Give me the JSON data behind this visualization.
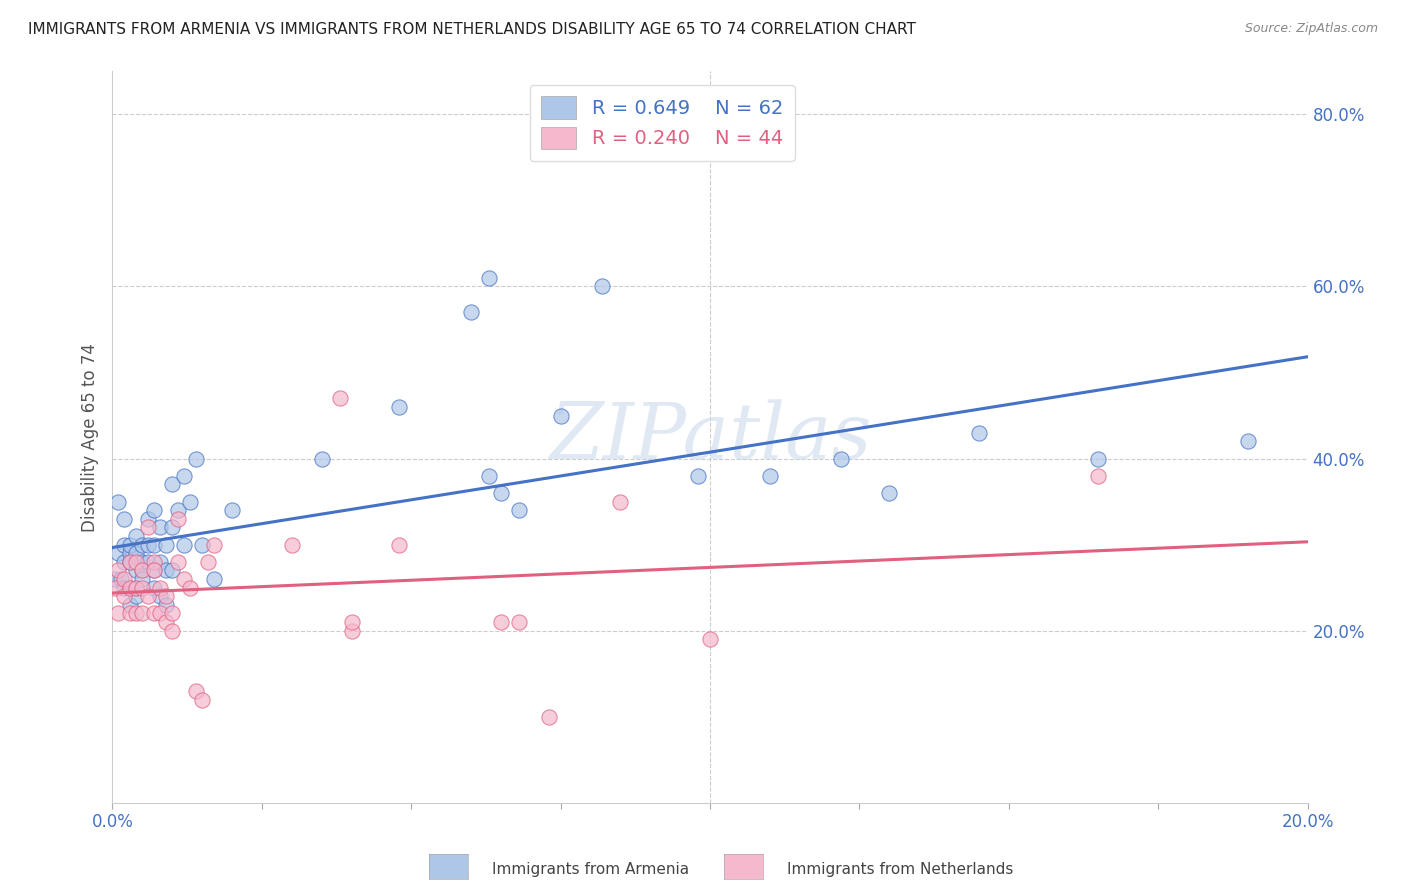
{
  "title": "IMMIGRANTS FROM ARMENIA VS IMMIGRANTS FROM NETHERLANDS DISABILITY AGE 65 TO 74 CORRELATION CHART",
  "source": "Source: ZipAtlas.com",
  "ylabel": "Disability Age 65 to 74",
  "xlim": [
    0.0,
    0.2
  ],
  "ylim": [
    0.0,
    0.85
  ],
  "x_ticks": [
    0.0,
    0.025,
    0.05,
    0.075,
    0.1,
    0.125,
    0.15,
    0.175,
    0.2
  ],
  "y_ticks_right": [
    0.2,
    0.4,
    0.6,
    0.8
  ],
  "y_tick_labels_right": [
    "20.0%",
    "40.0%",
    "60.0%",
    "80.0%"
  ],
  "armenia_R": 0.649,
  "armenia_N": 62,
  "netherlands_R": 0.24,
  "netherlands_N": 44,
  "armenia_color": "#aec6e8",
  "netherlands_color": "#f5b8cd",
  "armenia_line_color": "#4472c4",
  "netherlands_line_color": "#e06080",
  "legend_label_armenia": "Immigrants from Armenia",
  "legend_label_netherlands": "Immigrants from Netherlands",
  "watermark": "ZIPatlas",
  "armenia_x": [
    0.0005,
    0.001,
    0.001,
    0.0015,
    0.002,
    0.002,
    0.002,
    0.002,
    0.003,
    0.003,
    0.003,
    0.003,
    0.003,
    0.004,
    0.004,
    0.004,
    0.004,
    0.004,
    0.005,
    0.005,
    0.005,
    0.005,
    0.006,
    0.006,
    0.006,
    0.007,
    0.007,
    0.007,
    0.007,
    0.008,
    0.008,
    0.008,
    0.009,
    0.009,
    0.009,
    0.01,
    0.01,
    0.01,
    0.011,
    0.012,
    0.012,
    0.013,
    0.014,
    0.015,
    0.017,
    0.02,
    0.035,
    0.048,
    0.06,
    0.063,
    0.063,
    0.065,
    0.068,
    0.075,
    0.082,
    0.098,
    0.11,
    0.122,
    0.13,
    0.145,
    0.165,
    0.19
  ],
  "armenia_y": [
    0.26,
    0.35,
    0.29,
    0.26,
    0.28,
    0.3,
    0.33,
    0.25,
    0.29,
    0.3,
    0.28,
    0.25,
    0.23,
    0.31,
    0.29,
    0.27,
    0.25,
    0.24,
    0.28,
    0.27,
    0.3,
    0.26,
    0.33,
    0.28,
    0.3,
    0.34,
    0.3,
    0.27,
    0.25,
    0.32,
    0.28,
    0.24,
    0.3,
    0.27,
    0.23,
    0.37,
    0.32,
    0.27,
    0.34,
    0.38,
    0.3,
    0.35,
    0.4,
    0.3,
    0.26,
    0.34,
    0.4,
    0.46,
    0.57,
    0.38,
    0.61,
    0.36,
    0.34,
    0.45,
    0.6,
    0.38,
    0.38,
    0.4,
    0.36,
    0.43,
    0.4,
    0.42
  ],
  "netherlands_x": [
    0.0005,
    0.001,
    0.001,
    0.002,
    0.002,
    0.003,
    0.003,
    0.003,
    0.004,
    0.004,
    0.004,
    0.005,
    0.005,
    0.005,
    0.006,
    0.006,
    0.007,
    0.007,
    0.007,
    0.008,
    0.008,
    0.009,
    0.009,
    0.01,
    0.01,
    0.011,
    0.011,
    0.012,
    0.013,
    0.014,
    0.015,
    0.016,
    0.017,
    0.03,
    0.038,
    0.04,
    0.04,
    0.048,
    0.065,
    0.068,
    0.073,
    0.085,
    0.1,
    0.165
  ],
  "netherlands_y": [
    0.25,
    0.22,
    0.27,
    0.24,
    0.26,
    0.22,
    0.28,
    0.25,
    0.28,
    0.22,
    0.25,
    0.25,
    0.22,
    0.27,
    0.32,
    0.24,
    0.28,
    0.22,
    0.27,
    0.22,
    0.25,
    0.24,
    0.21,
    0.2,
    0.22,
    0.33,
    0.28,
    0.26,
    0.25,
    0.13,
    0.12,
    0.28,
    0.3,
    0.3,
    0.47,
    0.2,
    0.21,
    0.3,
    0.21,
    0.21,
    0.1,
    0.35,
    0.19,
    0.38
  ]
}
